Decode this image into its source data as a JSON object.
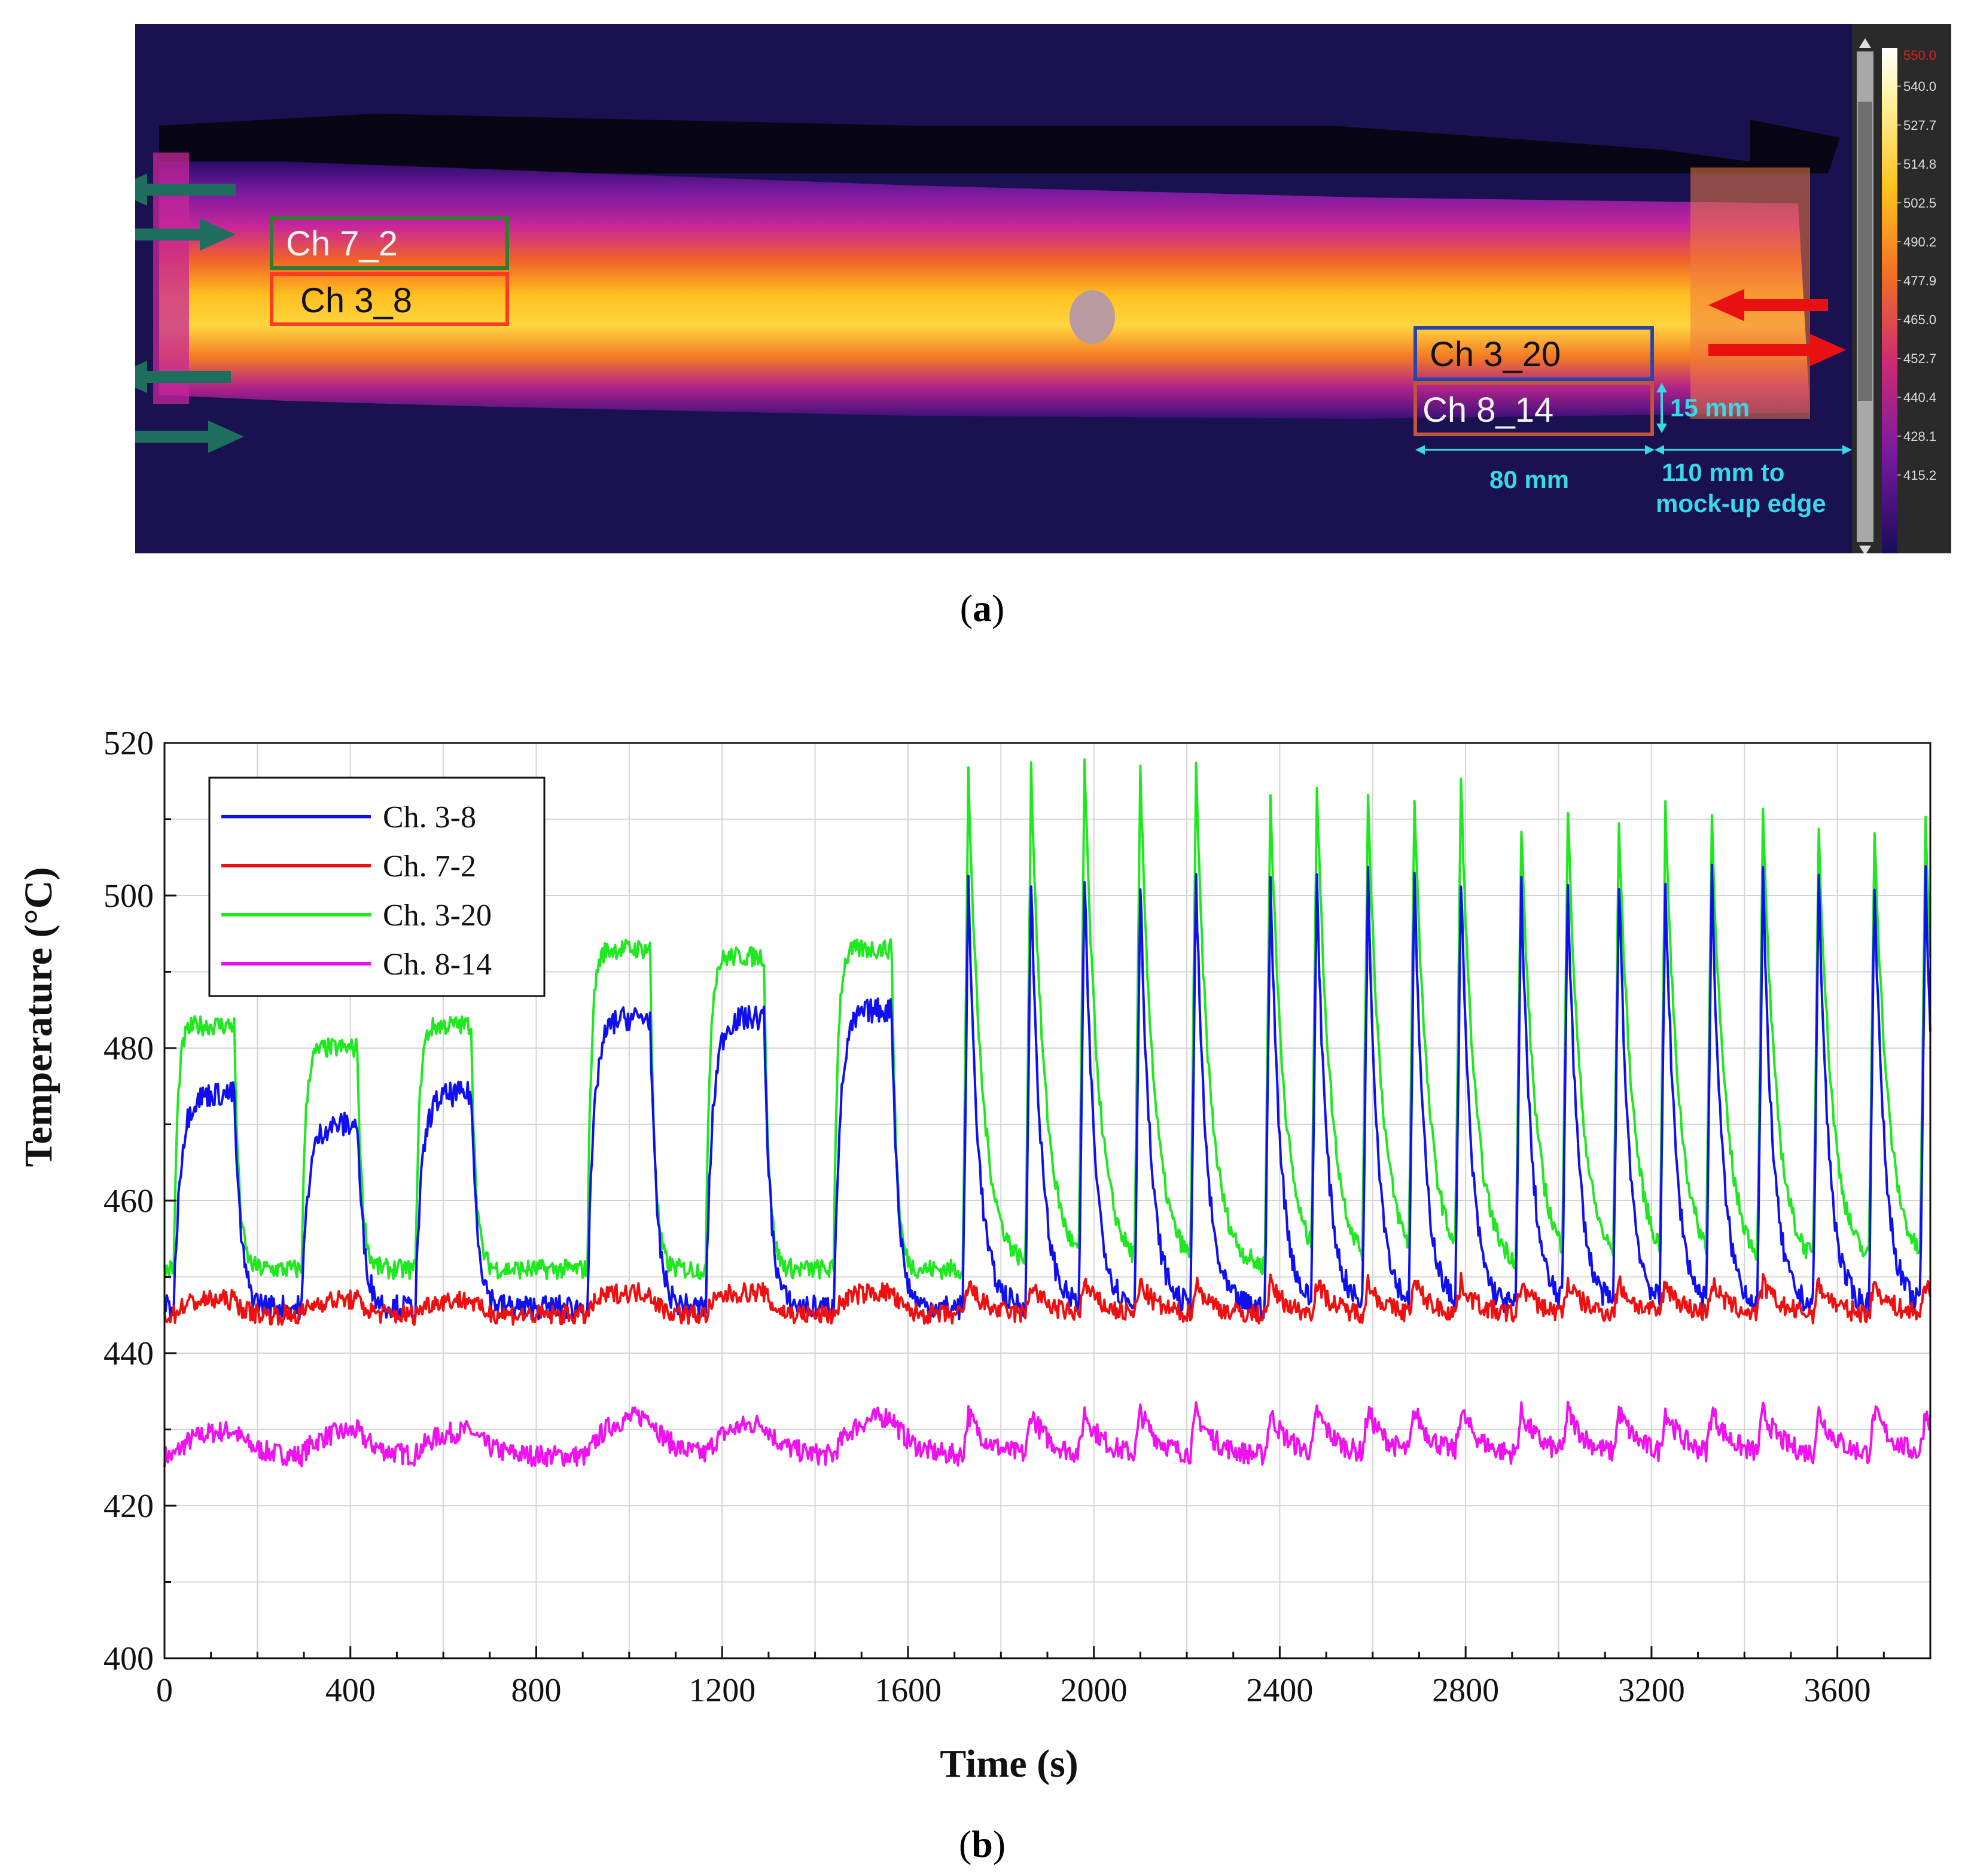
{
  "panel_a": {
    "caption_letter": "a",
    "roi_labels": [
      "Ch 7_2",
      "Ch 3_8",
      "Ch 3_20",
      "Ch 8_14"
    ],
    "dimensions": {
      "height": "15 mm",
      "width": "80 mm",
      "edge_line1": "110 mm to",
      "edge_line2": "mock-up edge"
    },
    "colorbar": {
      "max": "550.0",
      "ticks": [
        "540.0",
        "527.7",
        "514.8",
        "502.5",
        "490.2",
        "477.9",
        "465.0",
        "452.7",
        "440.4",
        "428.1",
        "415.2"
      ]
    },
    "colors": {
      "inlet_arrow": "#1e6e5e",
      "outlet_arrow": "#e81010",
      "roi_7_2": "#2e7d32",
      "roi_3_8": "#ff3b1f",
      "roi_3_20": "#2845a8",
      "roi_8_14": "#c0543c"
    }
  },
  "panel_b": {
    "caption_letter": "b"
  },
  "chart_data": {
    "type": "line",
    "xlabel": "Time (s)",
    "ylabel": "Temperature (°C)",
    "xlim": [
      0,
      3800
    ],
    "ylim": [
      400,
      520
    ],
    "x_ticks": [
      "0",
      "400",
      "800",
      "1200",
      "1600",
      "2000",
      "2400",
      "2800",
      "3200",
      "3600"
    ],
    "y_ticks": [
      "400",
      "420",
      "440",
      "460",
      "480",
      "500",
      "520"
    ],
    "grid": true,
    "legend_position": "top-left",
    "phase1_pulses": [
      {
        "start": 20,
        "end": 150,
        "peak_ch3_8": 474,
        "peak_ch7_2": 447,
        "peak_ch3_20": 483,
        "peak_ch8_14": 430
      },
      {
        "start": 295,
        "end": 415,
        "peak_ch3_8": 470,
        "peak_ch7_2": 447,
        "peak_ch3_20": 480,
        "peak_ch8_14": 430
      },
      {
        "start": 540,
        "end": 660,
        "peak_ch3_8": 474,
        "peak_ch7_2": 447,
        "peak_ch3_20": 483,
        "peak_ch8_14": 430
      },
      {
        "start": 910,
        "end": 1045,
        "peak_ch3_8": 484,
        "peak_ch7_2": 448,
        "peak_ch3_20": 493,
        "peak_ch8_14": 432
      },
      {
        "start": 1165,
        "end": 1290,
        "peak_ch3_8": 484,
        "peak_ch7_2": 448,
        "peak_ch3_20": 492,
        "peak_ch8_14": 431
      },
      {
        "start": 1440,
        "end": 1565,
        "peak_ch3_8": 485,
        "peak_ch7_2": 448,
        "peak_ch3_20": 493,
        "peak_ch8_14": 432
      }
    ],
    "phase2_spike_times": [
      1730,
      1865,
      1980,
      2100,
      2220,
      2380,
      2480,
      2590,
      2690,
      2790,
      2920,
      3020,
      3130,
      3230,
      3330,
      3440,
      3560,
      3680,
      3790
    ],
    "phase2_spike_peaks_ch3_20": [
      516,
      516,
      516,
      515,
      515,
      513,
      512,
      512,
      511,
      513,
      508,
      509,
      508,
      509,
      508,
      509,
      508,
      508,
      508
    ],
    "series": [
      {
        "name": "Ch. 3-8",
        "color": "#1010ee",
        "baseline": 446,
        "spike_peak": 502
      },
      {
        "name": "Ch. 7-2",
        "color": "#ee1010",
        "baseline": 445,
        "spike_peak": 449
      },
      {
        "name": "Ch. 3-20",
        "color": "#1ee81e",
        "baseline": 451
      },
      {
        "name": "Ch. 8-14",
        "color": "#f010f0",
        "baseline": 426.5,
        "spike_peak": 432
      }
    ]
  }
}
